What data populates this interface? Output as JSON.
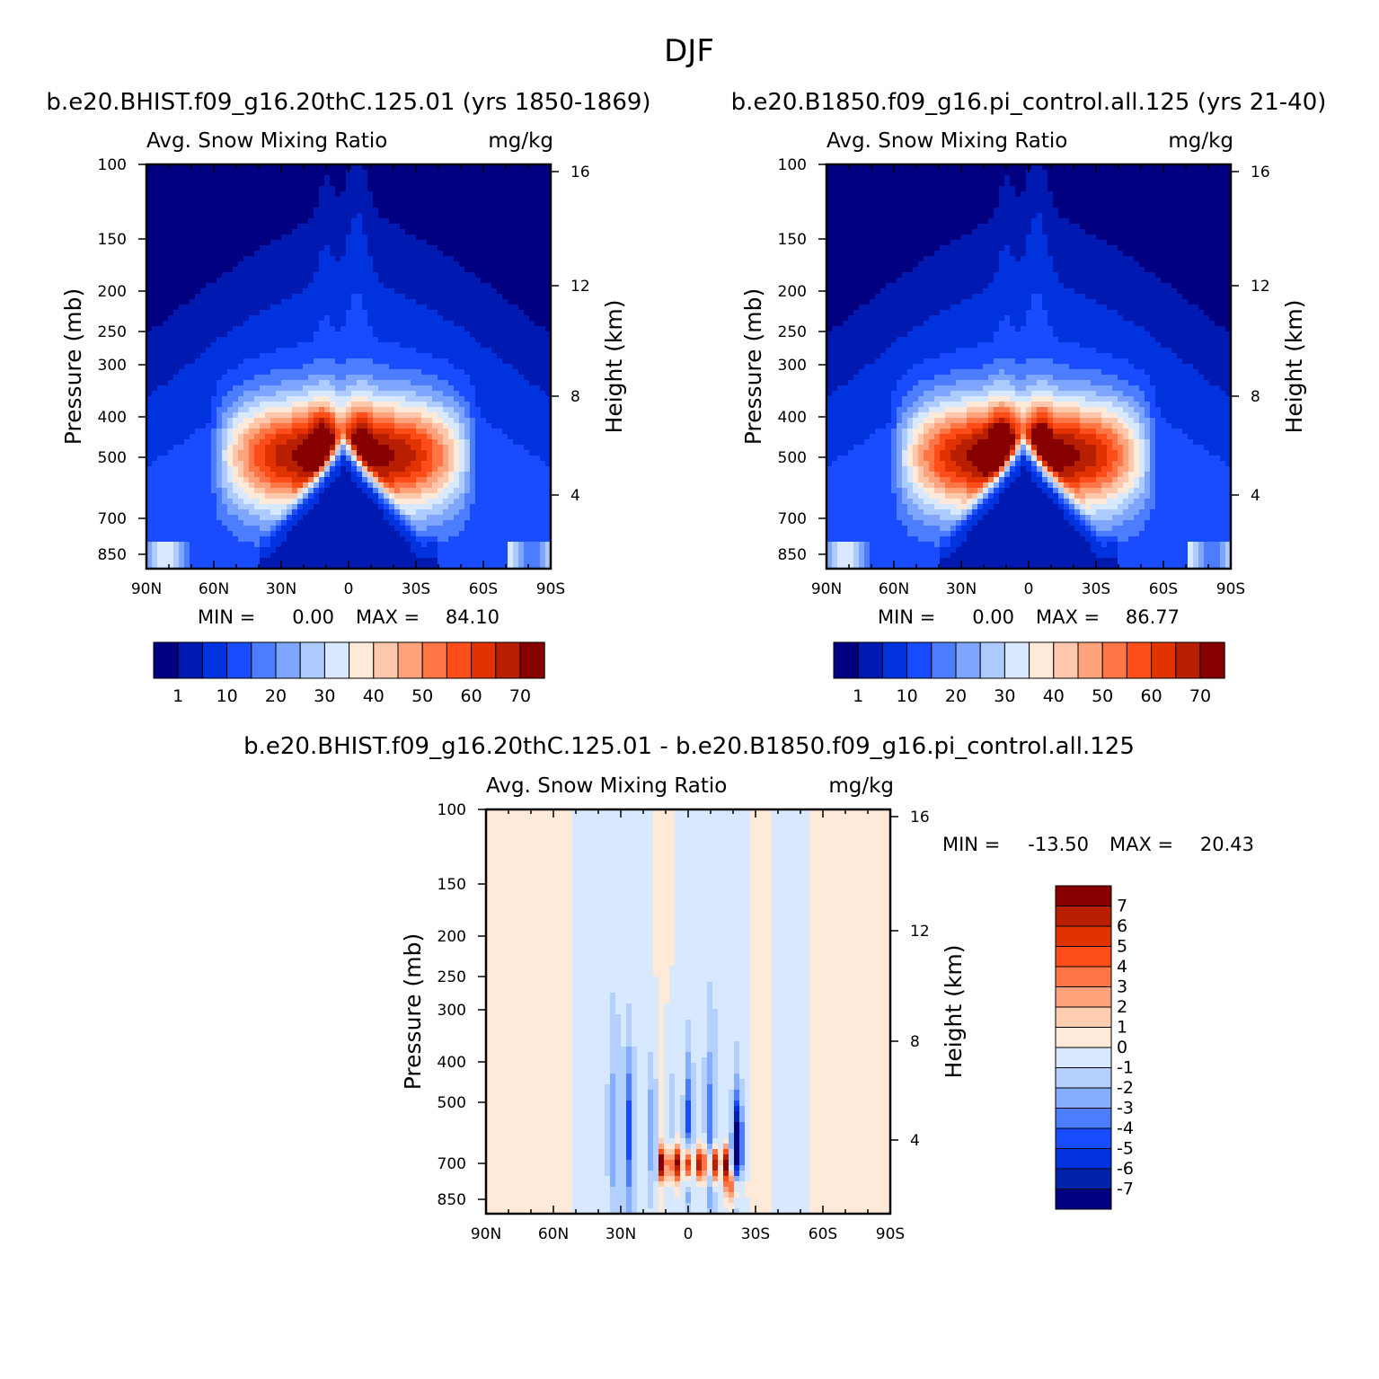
{
  "figure_title": "DJF",
  "colors": {
    "seq": [
      "#000080",
      "#0019b0",
      "#0033dd",
      "#1a4cff",
      "#4c7dff",
      "#7ea6ff",
      "#aecbff",
      "#d8e9ff",
      "#ffe9d9",
      "#ffc8ad",
      "#ffa37d",
      "#ff7545",
      "#ff4d1a",
      "#e03300",
      "#b71f00",
      "#870000"
    ],
    "diff": [
      "#000080",
      "#0022aa",
      "#0033dd",
      "#1a4cff",
      "#4c7dff",
      "#86aeff",
      "#b4d0ff",
      "#d8e9ff",
      "#ffe9d9",
      "#ffcdb0",
      "#ffa37d",
      "#ff7545",
      "#ff4d1a",
      "#e03300",
      "#b71f00",
      "#870000"
    ]
  },
  "chart_data": [
    {
      "type": "contour",
      "panel": "left",
      "case_title": "b.e20.BHIST.f09_g16.20thC.125.01 (yrs 1850-1869)",
      "variable": "Avg. Snow Mixing Ratio",
      "units": "mg/kg",
      "xlabel": "",
      "ylabel": "Pressure (mb)",
      "ylabel_right": "Height (km)",
      "x_ticks": [
        "90N",
        "60N",
        "30N",
        "0",
        "30S",
        "60S",
        "90S"
      ],
      "y_ticks": [
        "100",
        "150",
        "200",
        "250",
        "300",
        "400",
        "500",
        "700",
        "850"
      ],
      "y_ticks_right": [
        "16",
        "12",
        "8",
        "4"
      ],
      "min_label": "MIN =",
      "min_value": "0.00",
      "max_label": "MAX =",
      "max_value": "84.10",
      "legend_labels": [
        "1",
        "10",
        "20",
        "30",
        "40",
        "50",
        "60",
        "70"
      ],
      "field_max": 84.1
    },
    {
      "type": "contour",
      "panel": "right",
      "case_title": "b.e20.B1850.f09_g16.pi_control.all.125 (yrs 21-40)",
      "variable": "Avg. Snow Mixing Ratio",
      "units": "mg/kg",
      "xlabel": "",
      "ylabel": "Pressure (mb)",
      "ylabel_right": "Height (km)",
      "x_ticks": [
        "90N",
        "60N",
        "30N",
        "0",
        "30S",
        "60S",
        "90S"
      ],
      "y_ticks": [
        "100",
        "150",
        "200",
        "250",
        "300",
        "400",
        "500",
        "700",
        "850"
      ],
      "y_ticks_right": [
        "16",
        "12",
        "8",
        "4"
      ],
      "min_label": "MIN =",
      "min_value": "0.00",
      "max_label": "MAX =",
      "max_value": "86.77",
      "legend_labels": [
        "1",
        "10",
        "20",
        "30",
        "40",
        "50",
        "60",
        "70"
      ],
      "field_max": 86.77
    },
    {
      "type": "contour",
      "panel": "diff",
      "case_title": "b.e20.BHIST.f09_g16.20thC.125.01 - b.e20.B1850.f09_g16.pi_control.all.125",
      "variable": "Avg. Snow Mixing Ratio",
      "units": "mg/kg",
      "ylabel": "Pressure (mb)",
      "ylabel_right": "Height (km)",
      "x_ticks": [
        "90N",
        "60N",
        "30N",
        "0",
        "30S",
        "60S",
        "90S"
      ],
      "y_ticks": [
        "100",
        "150",
        "200",
        "250",
        "300",
        "400",
        "500",
        "700",
        "850"
      ],
      "y_ticks_right": [
        "16",
        "12",
        "8",
        "4"
      ],
      "min_label": "MIN =",
      "min_value": "-13.50",
      "max_label": "MAX =",
      "max_value": "20.43",
      "legend_labels": [
        "7",
        "6",
        "5",
        "4",
        "3",
        "2",
        "1",
        "0",
        "-1",
        "-2",
        "-3",
        "-4",
        "-5",
        "-6",
        "-7"
      ]
    }
  ]
}
